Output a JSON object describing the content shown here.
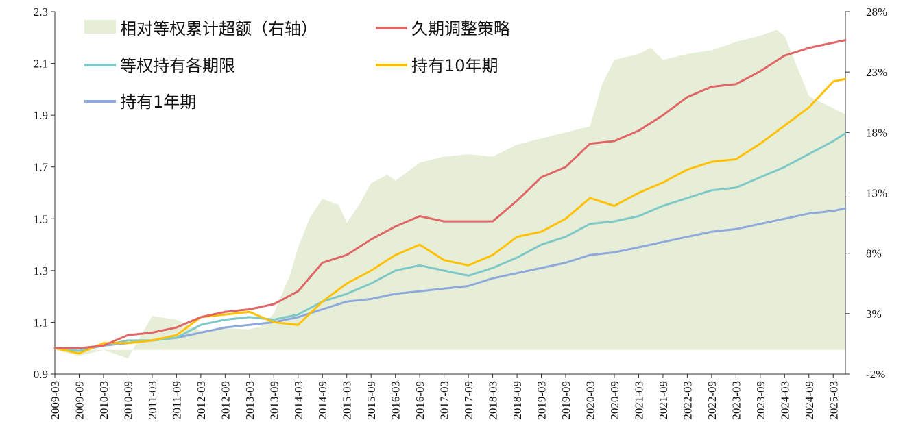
{
  "chart_data": {
    "type": "line",
    "title": "",
    "xlabel": "",
    "ylabel": "",
    "y_left": {
      "ylim": [
        0.9,
        2.3
      ],
      "ticks": [
        "0.9",
        "1.1",
        "1.3",
        "1.5",
        "1.7",
        "1.9",
        "2.1",
        "2.3"
      ]
    },
    "y_right": {
      "ylim": [
        -2,
        28
      ],
      "ticks": [
        "-2%",
        "3%",
        "8%",
        "13%",
        "18%",
        "23%",
        "28%"
      ]
    },
    "x_tick_labels": [
      "2009-03",
      "2009-09",
      "2010-03",
      "2010-09",
      "2011-03",
      "2011-09",
      "2012-03",
      "2012-09",
      "2013-03",
      "2013-09",
      "2014-03",
      "2014-09",
      "2015-03",
      "2015-09",
      "2016-03",
      "2016-09",
      "2017-03",
      "2017-09",
      "2018-03",
      "2018-09",
      "2019-03",
      "2019-09",
      "2020-03",
      "2020-09",
      "2021-03",
      "2021-09",
      "2022-03",
      "2022-09",
      "2023-03",
      "2023-09",
      "2024-03",
      "2024-09",
      "2025-03"
    ],
    "grid": false,
    "legend": "top-left",
    "series": [
      {
        "name": "相对等权累计超额（右轴）",
        "type": "area",
        "axis": "right",
        "color": "#e6eed8",
        "x": [
          "2009-03",
          "2009-09",
          "2010-03",
          "2010-09",
          "2011-03",
          "2011-09",
          "2012-03",
          "2012-09",
          "2013-03",
          "2013-06",
          "2013-09",
          "2014-01",
          "2014-03",
          "2014-06",
          "2014-09",
          "2015-01",
          "2015-03",
          "2015-06",
          "2015-09",
          "2016-01",
          "2016-03",
          "2016-09",
          "2017-03",
          "2017-09",
          "2018-03",
          "2018-09",
          "2019-03",
          "2019-09",
          "2020-03",
          "2020-06",
          "2020-09",
          "2021-03",
          "2021-06",
          "2021-09",
          "2022-03",
          "2022-09",
          "2023-03",
          "2023-09",
          "2024-01",
          "2024-03",
          "2024-09",
          "2025-03",
          "2025-06"
        ],
        "values": [
          0,
          -0.5,
          0,
          -0.7,
          2.8,
          2.5,
          1.6,
          1.8,
          1.7,
          2.0,
          3.0,
          6.2,
          8.5,
          11.0,
          12.5,
          12.0,
          10.5,
          12.0,
          13.8,
          14.5,
          14.0,
          15.5,
          16.0,
          16.2,
          16.0,
          17.0,
          17.5,
          18.0,
          18.5,
          22.0,
          24.0,
          24.5,
          25.0,
          24.0,
          24.5,
          24.8,
          25.5,
          26.0,
          26.5,
          26.0,
          21.0,
          20.0,
          19.5
        ]
      },
      {
        "name": "久期调整策略",
        "axis": "left",
        "color": "#e06666",
        "x": [
          "2009-03",
          "2009-09",
          "2010-03",
          "2010-09",
          "2011-03",
          "2011-09",
          "2012-03",
          "2012-09",
          "2013-03",
          "2013-09",
          "2014-03",
          "2014-09",
          "2015-03",
          "2015-09",
          "2016-03",
          "2016-09",
          "2017-03",
          "2017-09",
          "2018-03",
          "2018-09",
          "2019-03",
          "2019-09",
          "2020-03",
          "2020-09",
          "2021-03",
          "2021-09",
          "2022-03",
          "2022-09",
          "2023-03",
          "2023-09",
          "2024-03",
          "2024-09",
          "2025-03",
          "2025-06"
        ],
        "values": [
          1.0,
          1.0,
          1.01,
          1.05,
          1.06,
          1.08,
          1.12,
          1.14,
          1.15,
          1.17,
          1.22,
          1.33,
          1.36,
          1.42,
          1.47,
          1.51,
          1.49,
          1.49,
          1.49,
          1.57,
          1.66,
          1.7,
          1.79,
          1.8,
          1.84,
          1.9,
          1.97,
          2.01,
          2.02,
          2.07,
          2.13,
          2.16,
          2.18,
          2.19
        ]
      },
      {
        "name": "等权持有各期限",
        "axis": "left",
        "color": "#7ec8c8",
        "x": [
          "2009-03",
          "2009-09",
          "2010-03",
          "2010-09",
          "2011-03",
          "2011-09",
          "2012-03",
          "2012-09",
          "2013-03",
          "2013-09",
          "2014-03",
          "2014-09",
          "2015-03",
          "2015-09",
          "2016-03",
          "2016-09",
          "2017-03",
          "2017-09",
          "2018-03",
          "2018-09",
          "2019-03",
          "2019-09",
          "2020-03",
          "2020-09",
          "2021-03",
          "2021-09",
          "2022-03",
          "2022-09",
          "2023-03",
          "2023-09",
          "2024-03",
          "2024-09",
          "2025-03",
          "2025-06"
        ],
        "values": [
          1.0,
          0.99,
          1.01,
          1.03,
          1.03,
          1.04,
          1.09,
          1.11,
          1.12,
          1.11,
          1.13,
          1.18,
          1.21,
          1.25,
          1.3,
          1.32,
          1.3,
          1.28,
          1.31,
          1.35,
          1.4,
          1.43,
          1.48,
          1.49,
          1.51,
          1.55,
          1.58,
          1.61,
          1.62,
          1.66,
          1.7,
          1.75,
          1.8,
          1.83
        ]
      },
      {
        "name": "持有10年期",
        "axis": "left",
        "color": "#ffc000",
        "x": [
          "2009-03",
          "2009-09",
          "2010-03",
          "2010-09",
          "2011-03",
          "2011-09",
          "2012-03",
          "2012-09",
          "2013-03",
          "2013-09",
          "2014-03",
          "2014-09",
          "2015-03",
          "2015-09",
          "2016-03",
          "2016-09",
          "2017-03",
          "2017-09",
          "2018-03",
          "2018-09",
          "2019-03",
          "2019-09",
          "2020-03",
          "2020-09",
          "2021-03",
          "2021-09",
          "2022-03",
          "2022-09",
          "2023-03",
          "2023-09",
          "2024-03",
          "2024-09",
          "2025-03",
          "2025-06"
        ],
        "values": [
          1.0,
          0.98,
          1.02,
          1.02,
          1.03,
          1.05,
          1.12,
          1.13,
          1.14,
          1.1,
          1.09,
          1.18,
          1.25,
          1.3,
          1.36,
          1.4,
          1.34,
          1.32,
          1.36,
          1.43,
          1.45,
          1.5,
          1.58,
          1.55,
          1.6,
          1.64,
          1.69,
          1.72,
          1.73,
          1.79,
          1.86,
          1.93,
          2.03,
          2.04
        ]
      },
      {
        "name": "持有1年期",
        "axis": "left",
        "color": "#8ea9db",
        "x": [
          "2009-03",
          "2009-09",
          "2010-03",
          "2010-09",
          "2011-03",
          "2011-09",
          "2012-03",
          "2012-09",
          "2013-03",
          "2013-09",
          "2014-03",
          "2014-09",
          "2015-03",
          "2015-09",
          "2016-03",
          "2016-09",
          "2017-03",
          "2017-09",
          "2018-03",
          "2018-09",
          "2019-03",
          "2019-09",
          "2020-03",
          "2020-09",
          "2021-03",
          "2021-09",
          "2022-03",
          "2022-09",
          "2023-03",
          "2023-09",
          "2024-03",
          "2024-09",
          "2025-03",
          "2025-06"
        ],
        "values": [
          1.0,
          1.0,
          1.01,
          1.02,
          1.03,
          1.04,
          1.06,
          1.08,
          1.09,
          1.1,
          1.12,
          1.15,
          1.18,
          1.19,
          1.21,
          1.22,
          1.23,
          1.24,
          1.27,
          1.29,
          1.31,
          1.33,
          1.36,
          1.37,
          1.39,
          1.41,
          1.43,
          1.45,
          1.46,
          1.48,
          1.5,
          1.52,
          1.53,
          1.54
        ]
      }
    ]
  }
}
